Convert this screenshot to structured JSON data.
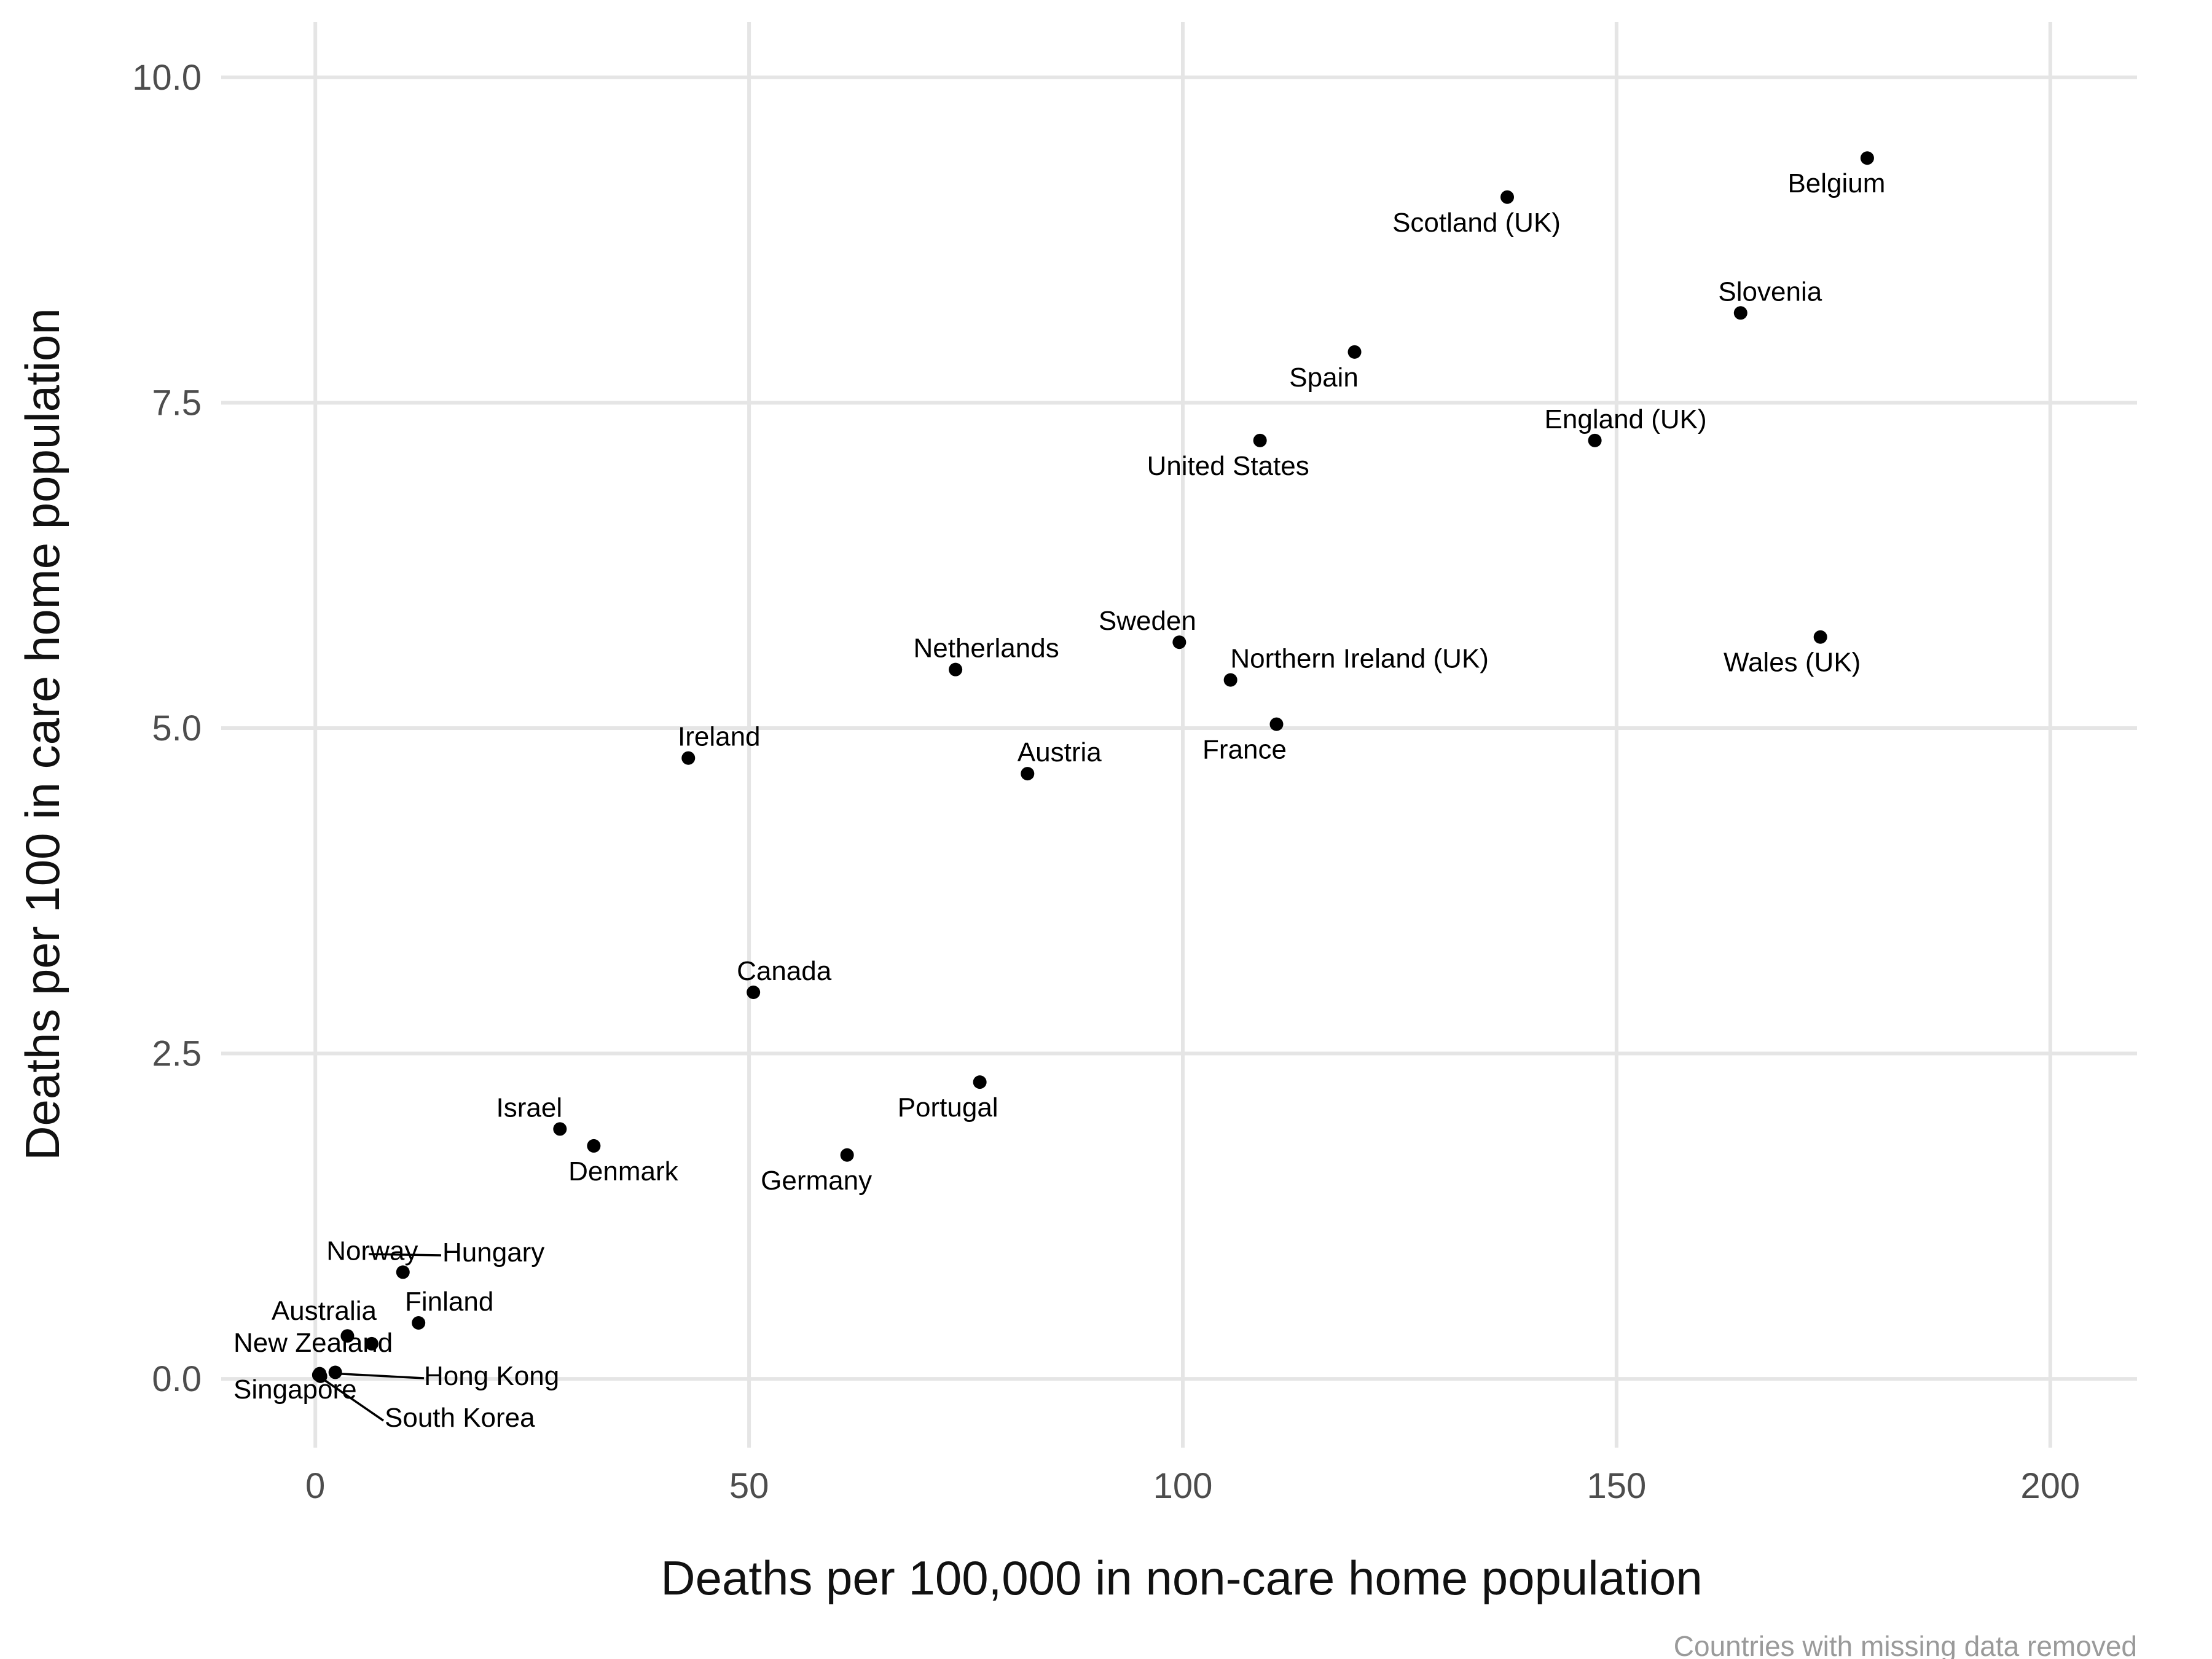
{
  "chart_data": {
    "type": "scatter",
    "title": "",
    "xlabel": "Deaths per 100,000 in non-care home population",
    "ylabel": "Deaths per 100 in care home population",
    "caption": "Countries with missing data removed",
    "xlim": [
      -10,
      210
    ],
    "ylim": [
      -0.5,
      10.5
    ],
    "x_ticks": [
      "0",
      "50",
      "100",
      "150",
      "200"
    ],
    "y_ticks": [
      "0.0",
      "2.5",
      "5.0",
      "7.5",
      "10.0"
    ],
    "grid": true,
    "point_color": "#000000",
    "points": [
      {
        "label": "Belgium",
        "x": 178.9,
        "y": 9.38
      },
      {
        "label": "Scotland (UK)",
        "x": 137.4,
        "y": 9.08
      },
      {
        "label": "Slovenia",
        "x": 164.3,
        "y": 8.19
      },
      {
        "label": "Spain",
        "x": 119.8,
        "y": 7.89
      },
      {
        "label": "England (UK)",
        "x": 147.5,
        "y": 7.21
      },
      {
        "label": "United States",
        "x": 108.9,
        "y": 7.21
      },
      {
        "label": "Wales (UK)",
        "x": 173.5,
        "y": 5.7
      },
      {
        "label": "Sweden",
        "x": 99.6,
        "y": 5.66
      },
      {
        "label": "Netherlands",
        "x": 73.8,
        "y": 5.45
      },
      {
        "label": "Northern Ireland (UK)",
        "x": 105.5,
        "y": 5.37
      },
      {
        "label": "France",
        "x": 110.8,
        "y": 5.03
      },
      {
        "label": "Ireland",
        "x": 43.0,
        "y": 4.77
      },
      {
        "label": "Austria",
        "x": 82.1,
        "y": 4.65
      },
      {
        "label": "Canada",
        "x": 50.5,
        "y": 2.97
      },
      {
        "label": "Portugal",
        "x": 76.6,
        "y": 2.28
      },
      {
        "label": "Israel",
        "x": 28.2,
        "y": 1.92
      },
      {
        "label": "Denmark",
        "x": 32.1,
        "y": 1.79
      },
      {
        "label": "Germany",
        "x": 61.3,
        "y": 1.72
      },
      {
        "label": "Norway",
        "x": 10.1,
        "y": 0.82
      },
      {
        "label": "Finland",
        "x": 11.9,
        "y": 0.43
      },
      {
        "label": "Australia",
        "x": 3.7,
        "y": 0.33
      },
      {
        "label": "Hungary",
        "x": 6.5,
        "y": 0.27
      },
      {
        "label": "Hong Kong",
        "x": 2.3,
        "y": 0.05
      },
      {
        "label": "New Zealand",
        "x": 0.5,
        "y": 0.04
      },
      {
        "label": "Singapore",
        "x": 0.4,
        "y": 0.03
      },
      {
        "label": "South Korea",
        "x": 0.6,
        "y": 0.02
      }
    ]
  }
}
